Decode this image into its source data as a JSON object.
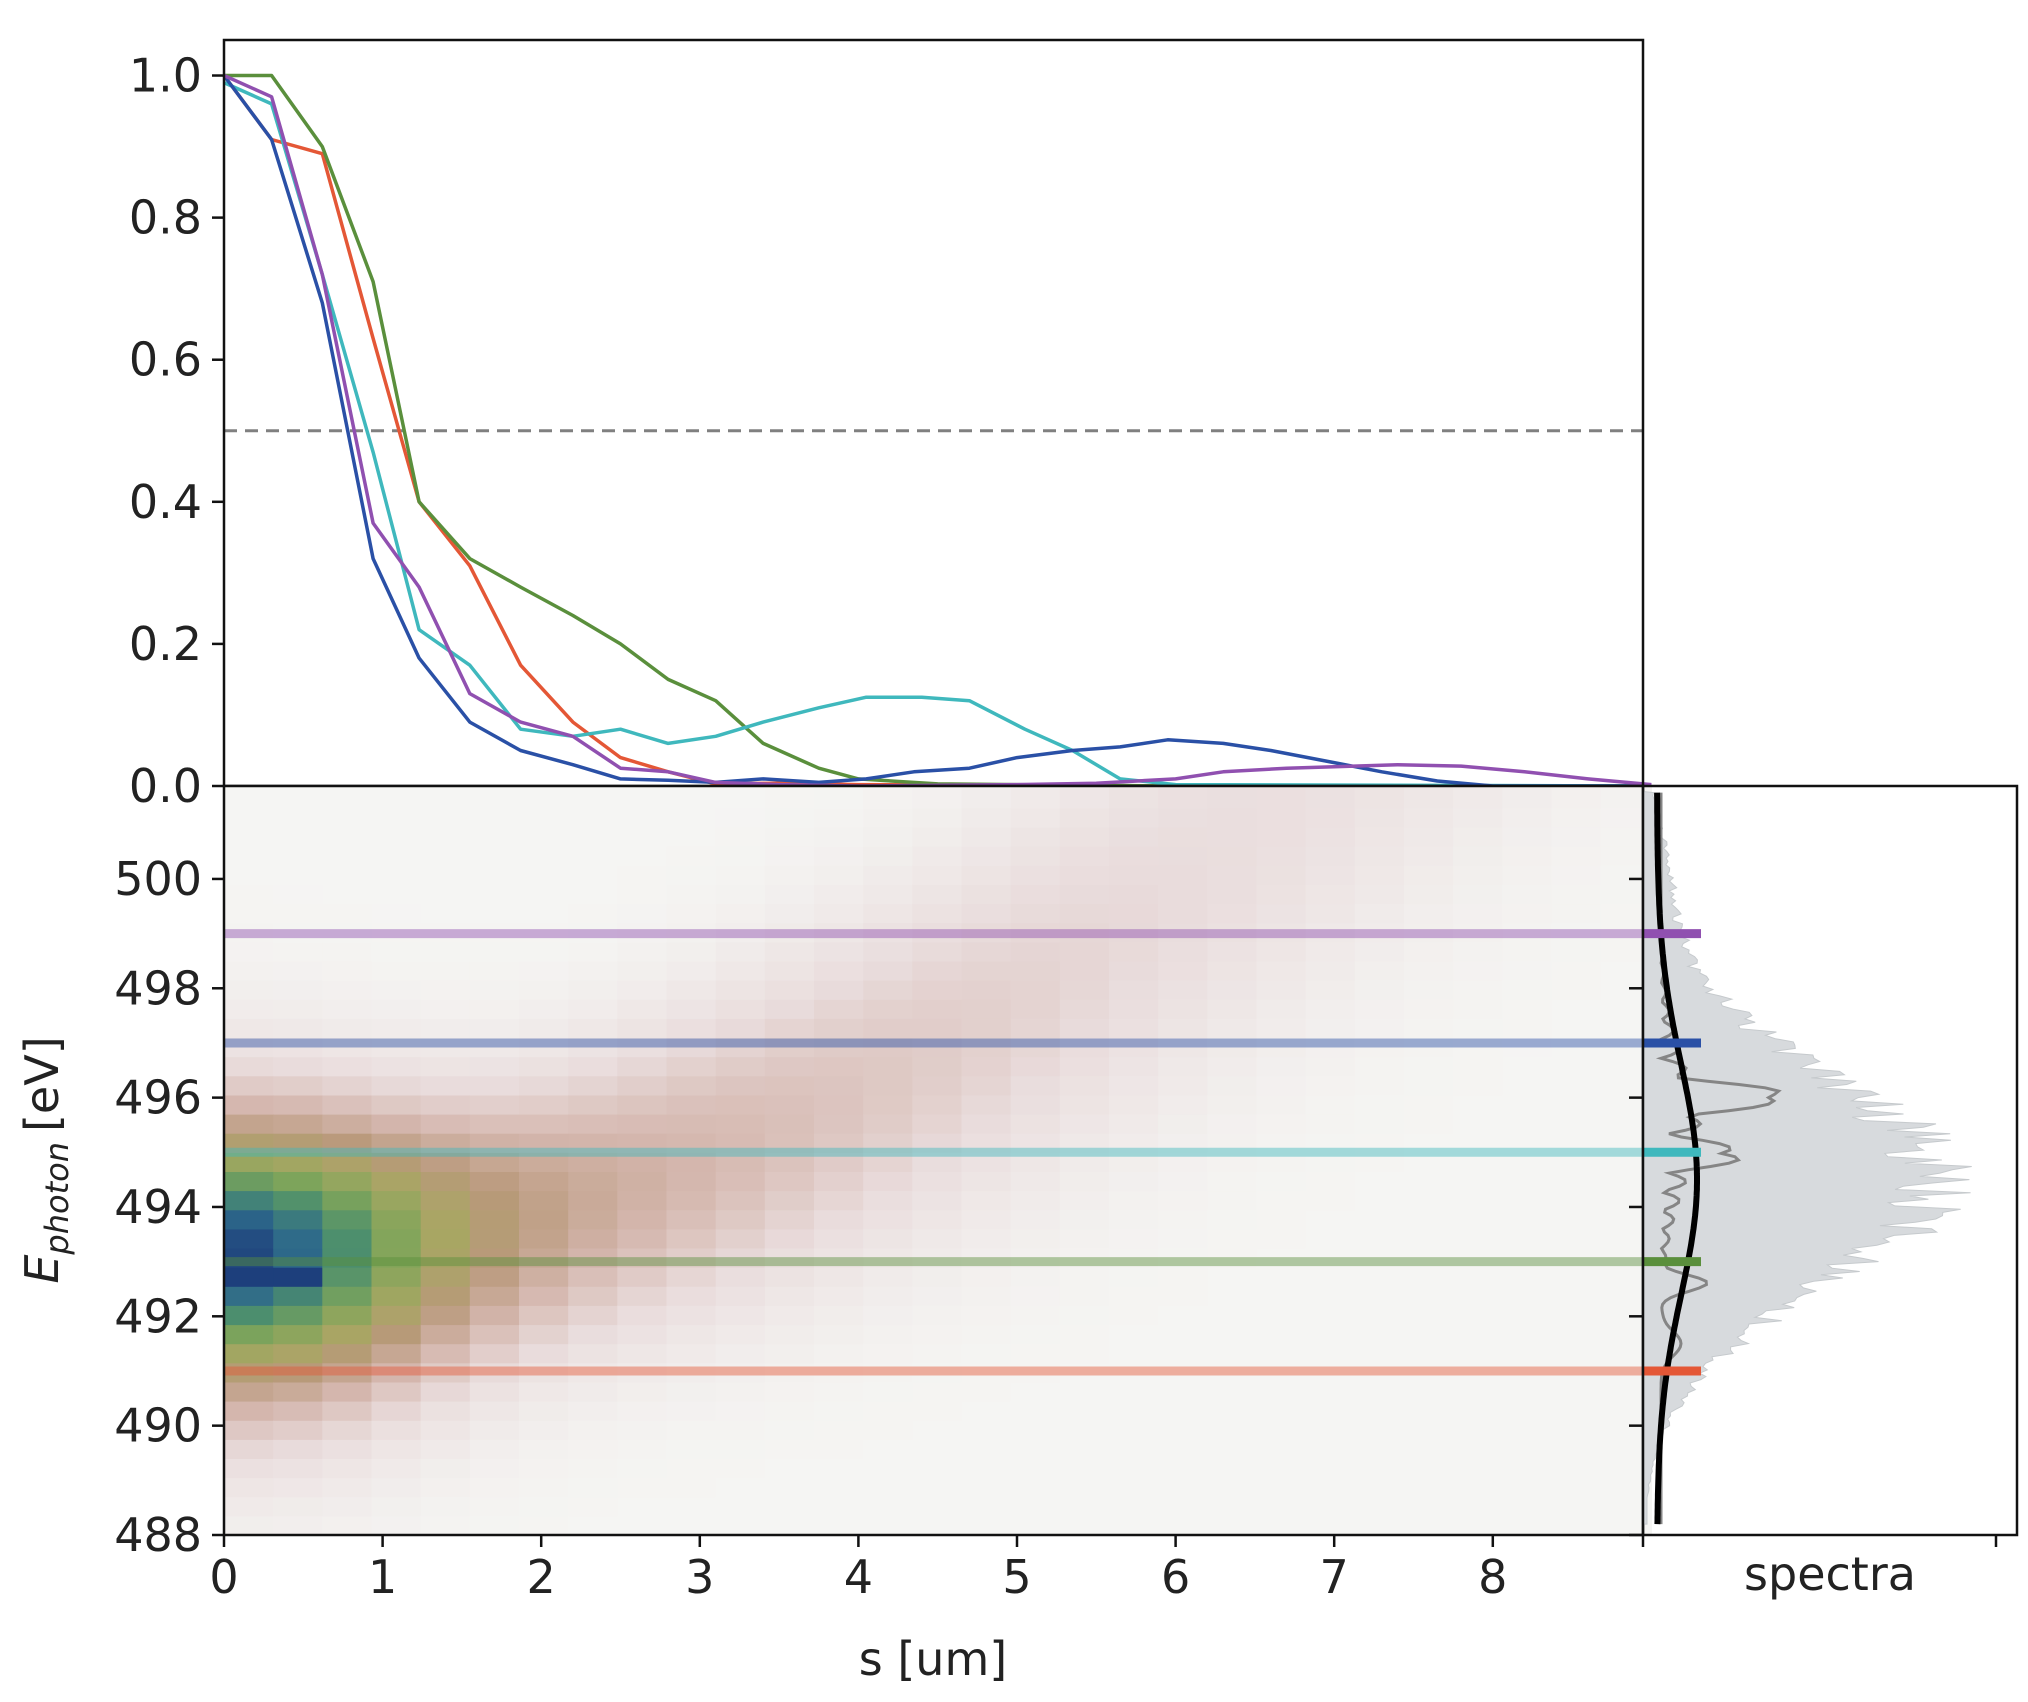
{
  "chart_data": [
    {
      "type": "line",
      "xlim": [
        0,
        9
      ],
      "ylim": [
        0,
        1.05
      ],
      "yticks": [
        "0.0",
        "0.2",
        "0.4",
        "0.6",
        "0.8",
        "1.0"
      ],
      "threshold": 0.5,
      "series": [
        {
          "color": "#e45736",
          "points": [
            [
              0,
              1.0
            ],
            [
              0.3,
              0.91
            ],
            [
              0.62,
              0.89
            ],
            [
              0.94,
              0.63
            ],
            [
              1.23,
              0.4
            ],
            [
              1.55,
              0.31
            ],
            [
              1.87,
              0.17
            ],
            [
              2.2,
              0.09
            ],
            [
              2.5,
              0.04
            ],
            [
              2.8,
              0.02
            ],
            [
              3.1,
              0.003
            ],
            [
              3.5,
              0.004
            ],
            [
              4.0,
              0.002
            ],
            [
              6.0,
              0.0
            ],
            [
              9.0,
              0.0
            ]
          ]
        },
        {
          "color": "#5a8f3c",
          "points": [
            [
              0,
              1.0
            ],
            [
              0.3,
              1.0
            ],
            [
              0.62,
              0.9
            ],
            [
              0.94,
              0.71
            ],
            [
              1.23,
              0.4
            ],
            [
              1.55,
              0.32
            ],
            [
              1.87,
              0.28
            ],
            [
              2.2,
              0.24
            ],
            [
              2.5,
              0.2
            ],
            [
              2.8,
              0.15
            ],
            [
              3.1,
              0.12
            ],
            [
              3.4,
              0.06
            ],
            [
              3.75,
              0.025
            ],
            [
              4.0,
              0.01
            ],
            [
              4.5,
              0.003
            ],
            [
              6.0,
              0.0
            ],
            [
              9.0,
              0.0
            ]
          ]
        },
        {
          "color": "#3fb8bd",
          "points": [
            [
              0,
              0.99
            ],
            [
              0.3,
              0.96
            ],
            [
              0.62,
              0.72
            ],
            [
              0.94,
              0.47
            ],
            [
              1.23,
              0.22
            ],
            [
              1.55,
              0.17
            ],
            [
              1.87,
              0.08
            ],
            [
              2.2,
              0.07
            ],
            [
              2.5,
              0.08
            ],
            [
              2.8,
              0.06
            ],
            [
              3.1,
              0.07
            ],
            [
              3.4,
              0.09
            ],
            [
              3.75,
              0.11
            ],
            [
              4.05,
              0.125
            ],
            [
              4.4,
              0.125
            ],
            [
              4.7,
              0.12
            ],
            [
              5.05,
              0.08
            ],
            [
              5.35,
              0.05
            ],
            [
              5.65,
              0.01
            ],
            [
              6.0,
              0.002
            ],
            [
              9.0,
              0.0
            ]
          ]
        },
        {
          "color": "#2a50a6",
          "points": [
            [
              0,
              1.0
            ],
            [
              0.3,
              0.91
            ],
            [
              0.62,
              0.68
            ],
            [
              0.94,
              0.32
            ],
            [
              1.23,
              0.18
            ],
            [
              1.55,
              0.09
            ],
            [
              1.87,
              0.05
            ],
            [
              2.2,
              0.03
            ],
            [
              2.5,
              0.01
            ],
            [
              2.8,
              0.008
            ],
            [
              3.1,
              0.005
            ],
            [
              3.4,
              0.01
            ],
            [
              3.75,
              0.005
            ],
            [
              4.05,
              0.01
            ],
            [
              4.35,
              0.02
            ],
            [
              4.7,
              0.025
            ],
            [
              5.0,
              0.04
            ],
            [
              5.35,
              0.05
            ],
            [
              5.65,
              0.055
            ],
            [
              5.95,
              0.065
            ],
            [
              6.3,
              0.06
            ],
            [
              6.6,
              0.05
            ],
            [
              6.95,
              0.035
            ],
            [
              7.3,
              0.02
            ],
            [
              7.65,
              0.007
            ],
            [
              8.0,
              0.0
            ],
            [
              9.0,
              0.0
            ]
          ]
        },
        {
          "color": "#9050b0",
          "points": [
            [
              0,
              1.0
            ],
            [
              0.3,
              0.97
            ],
            [
              0.62,
              0.72
            ],
            [
              0.94,
              0.37
            ],
            [
              1.23,
              0.28
            ],
            [
              1.55,
              0.13
            ],
            [
              1.87,
              0.09
            ],
            [
              2.2,
              0.07
            ],
            [
              2.5,
              0.025
            ],
            [
              2.8,
              0.02
            ],
            [
              3.1,
              0.005
            ],
            [
              3.5,
              0.002
            ],
            [
              4.0,
              0.0
            ],
            [
              5.0,
              0.002
            ],
            [
              5.5,
              0.004
            ],
            [
              6.0,
              0.01
            ],
            [
              6.3,
              0.02
            ],
            [
              6.7,
              0.025
            ],
            [
              7.0,
              0.027
            ],
            [
              7.4,
              0.03
            ],
            [
              7.8,
              0.028
            ],
            [
              8.2,
              0.02
            ],
            [
              8.6,
              0.01
            ],
            [
              9.0,
              0.002
            ]
          ]
        }
      ]
    },
    {
      "type": "heatmap",
      "xlim": [
        0,
        9
      ],
      "ylim": [
        488,
        501.7
      ],
      "xticks": [
        "0",
        "1",
        "2",
        "3",
        "4",
        "5",
        "6",
        "7",
        "8"
      ],
      "yticks": [
        "488",
        "490",
        "492",
        "494",
        "496",
        "498",
        "500"
      ],
      "xlabel": "s [um]",
      "ylabel": "E",
      "ylabel_sub": "photon",
      "ylabel_unit": "[eV]",
      "colormap": [
        "#f5f5f3",
        "#e9dcdc",
        "#d4b6ad",
        "#b9997b",
        "#a8a663",
        "#80a55a",
        "#4d8f6d",
        "#2e6a8a",
        "#1d3f7c",
        "#111111"
      ],
      "lines": [
        {
          "energy": 499,
          "color": "#9050b0"
        },
        {
          "energy": 497,
          "color": "#2a50a6"
        },
        {
          "energy": 495,
          "color": "#3fb8bd"
        },
        {
          "energy": 493,
          "color": "#5a8f3c"
        },
        {
          "energy": 491,
          "color": "#e45736"
        }
      ]
    },
    {
      "type": "area",
      "orientation": "vertical",
      "xlabel": "spectra",
      "ylim": [
        488,
        501.7
      ]
    }
  ]
}
